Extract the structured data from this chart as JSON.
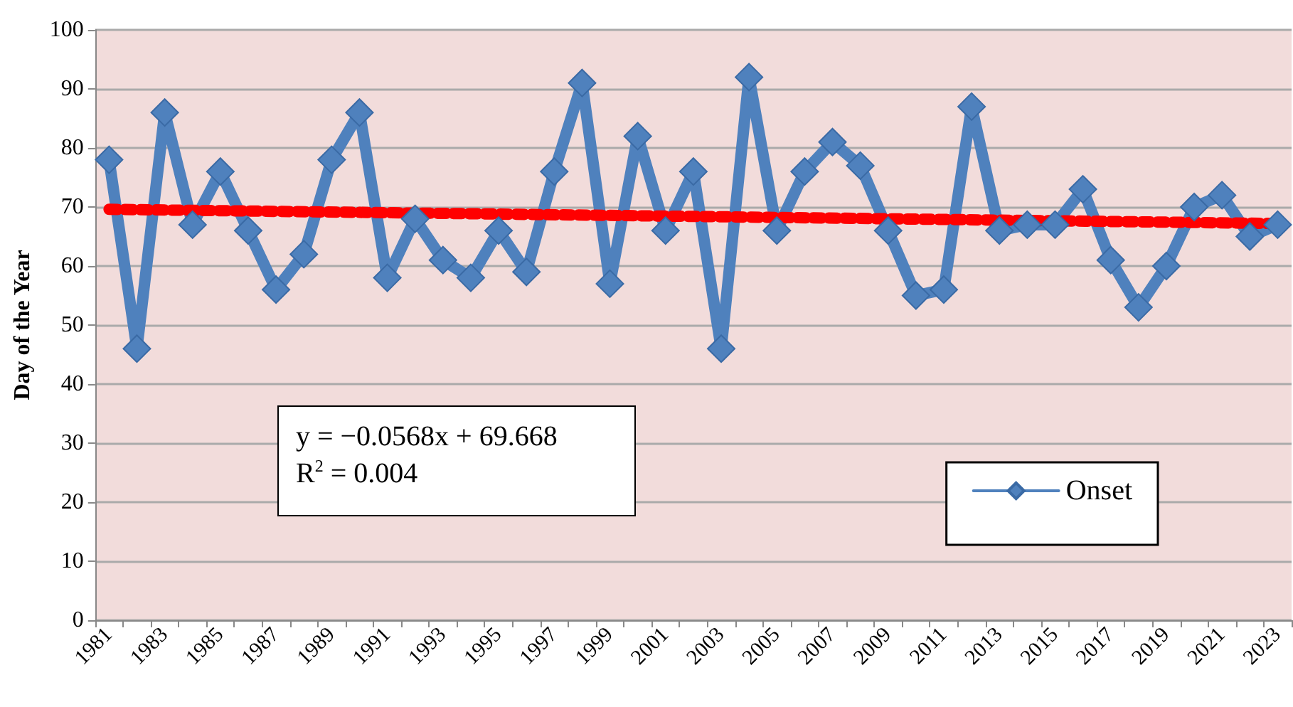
{
  "chart_data": {
    "type": "line",
    "ylabel": "Day of the Year",
    "categories": [
      "1981",
      null,
      "1983",
      null,
      "1985",
      null,
      "1987",
      null,
      "1989",
      null,
      "1991",
      null,
      "1993",
      null,
      "1995",
      null,
      "1997",
      null,
      "1999",
      null,
      "2001",
      null,
      "2003",
      null,
      "2005",
      null,
      "2007",
      null,
      "2009",
      null,
      "2011",
      null,
      "2013",
      null,
      "2015",
      null,
      "2017",
      null,
      "2019",
      null,
      "2021",
      null,
      "2023"
    ],
    "series": [
      {
        "name": "Onset",
        "color": "#4f81bd",
        "marker": "diamond",
        "values": [
          78,
          46,
          86,
          67,
          76,
          66,
          56,
          62,
          78,
          86,
          58,
          68,
          61,
          58,
          66,
          59,
          76,
          91,
          57,
          82,
          66,
          76,
          46,
          92,
          66,
          76,
          81,
          77,
          66,
          55,
          56,
          87,
          66,
          67,
          67,
          73,
          61,
          53,
          60,
          70,
          72,
          65,
          67
        ]
      },
      {
        "type": "line",
        "color": "#ff0000",
        "line_style": "dashed",
        "marker": "none",
        "values": [
          69.6,
          null,
          null,
          null,
          null,
          null,
          null,
          null,
          null,
          null,
          null,
          null,
          null,
          null,
          null,
          null,
          null,
          null,
          null,
          null,
          null,
          null,
          null,
          null,
          null,
          null,
          null,
          null,
          null,
          null,
          null,
          null,
          null,
          null,
          null,
          null,
          null,
          null,
          null,
          null,
          null,
          null,
          67.2
        ]
      }
    ],
    "annotations": [
      "y = −0.0568x + 69.668",
      "R$^{2}$ = 0.004"
    ],
    "ylim": [
      0,
      100
    ],
    "yticks": [
      0,
      10,
      20,
      30,
      40,
      50,
      60,
      70,
      80,
      90,
      100
    ],
    "grid": "y",
    "legend": "bottom right"
  }
}
